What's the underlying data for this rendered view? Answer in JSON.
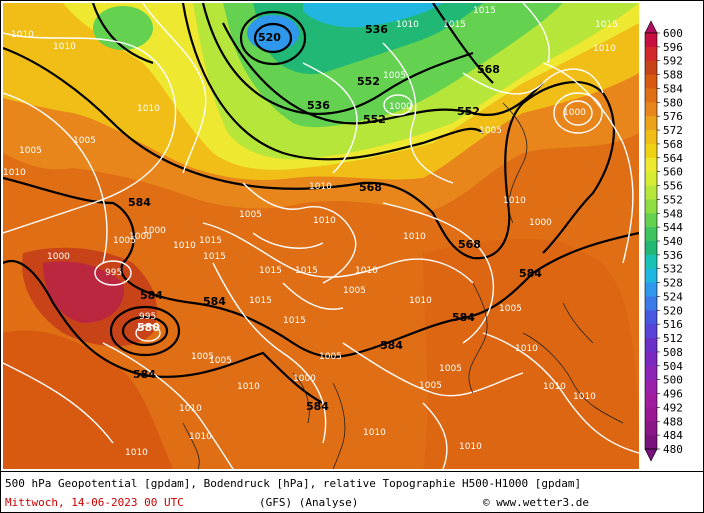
{
  "caption": {
    "line1": "500 hPa Geopotential [gpdam], Bodendruck [hPa], relative Topographie H500-H1000 [gpdam]",
    "date": "Mittwoch, 14-06-2023  00 UTC",
    "model": "(GFS)  (Analyse)",
    "credit": "www.wetter3.de"
  },
  "colorbar": {
    "levels": [
      "600",
      "596",
      "592",
      "588",
      "584",
      "580",
      "576",
      "572",
      "568",
      "564",
      "560",
      "556",
      "552",
      "548",
      "544",
      "540",
      "536",
      "532",
      "528",
      "524",
      "520",
      "516",
      "512",
      "508",
      "504",
      "500",
      "496",
      "492",
      "488",
      "484",
      "480"
    ],
    "colors": [
      "#b01060",
      "#c81040",
      "#d2282a",
      "#c84418",
      "#d85a10",
      "#e06e14",
      "#e8861c",
      "#eca21a",
      "#f0be16",
      "#f0d214",
      "#eee830",
      "#d6ee32",
      "#b6e63a",
      "#8ede42",
      "#64d250",
      "#3ec45e",
      "#20b874",
      "#18c2b4",
      "#20b6e0",
      "#3098ec",
      "#3c7ae8",
      "#4858e0",
      "#5844d8",
      "#6a30c8",
      "#7a28c0",
      "#8c24b8",
      "#9a20ac",
      "#a21ca0",
      "#9a1894",
      "#8a1488",
      "#7a127c"
    ]
  },
  "map_labels": {
    "geopotential": [
      "520",
      "536",
      "536",
      "552",
      "552",
      "552",
      "568",
      "568",
      "568",
      "584",
      "584",
      "584",
      "584",
      "584",
      "584",
      "584",
      "584"
    ],
    "pressure": [
      "1010",
      "1010",
      "1005",
      "1005",
      "1010",
      "1000",
      "1010",
      "1005",
      "1015",
      "1015",
      "1010",
      "995",
      "995",
      "1000",
      "1005",
      "1010",
      "1015",
      "1015",
      "1010",
      "1010",
      "1005",
      "1000",
      "1005",
      "1010",
      "1015",
      "1015",
      "1010",
      "1005",
      "1010",
      "1000",
      "1010",
      "1015",
      "1005",
      "1010",
      "1015",
      "1000",
      "1005",
      "1010",
      "1000",
      "1005",
      "1010",
      "1010",
      "1005",
      "1010",
      "1010",
      "1010",
      "1005",
      "1010",
      "1005",
      "1010",
      "1015",
      "1010",
      "1000"
    ]
  }
}
